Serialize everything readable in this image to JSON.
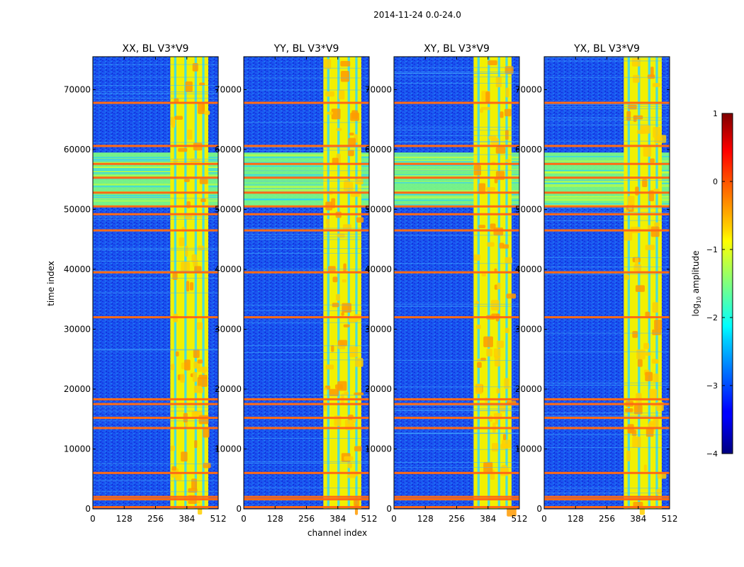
{
  "chart_data": {
    "type": "heatmap",
    "suptitle": "2014-11-24 0.0-24.0",
    "xlabel": "channel index",
    "ylabel": "time index",
    "xlim": [
      0,
      512
    ],
    "ylim": [
      0,
      75500
    ],
    "x_ticks": [
      0,
      128,
      256,
      384,
      512
    ],
    "y_ticks": [
      0,
      10000,
      20000,
      30000,
      40000,
      50000,
      60000,
      70000
    ],
    "panels": [
      {
        "title": "XX, BL V3*V9",
        "pol": "XX"
      },
      {
        "title": "YY, BL V3*V9",
        "pol": "YY"
      },
      {
        "title": "XY, BL V3*V9",
        "pol": "XY"
      },
      {
        "title": "YX, BL V3*V9",
        "pol": "YX"
      }
    ],
    "rfi_channel_band": [
      325,
      480
    ],
    "rfi_time_band": [
      50500,
      59500
    ],
    "strong_rfi_time_rows": [
      300,
      1600,
      2000,
      6000,
      13500,
      15200,
      17500,
      18300,
      32000,
      39500,
      46500,
      49200,
      50500,
      52800,
      55300,
      57600,
      60600,
      67800
    ],
    "colorbar": {
      "label": "log",
      "label_sub": "10",
      "label_rest": " amplitude",
      "min": -4,
      "max": 1,
      "ticks": [
        "1",
        "0",
        "−1",
        "−2",
        "−3",
        "−4"
      ],
      "colormap": "jet"
    }
  }
}
